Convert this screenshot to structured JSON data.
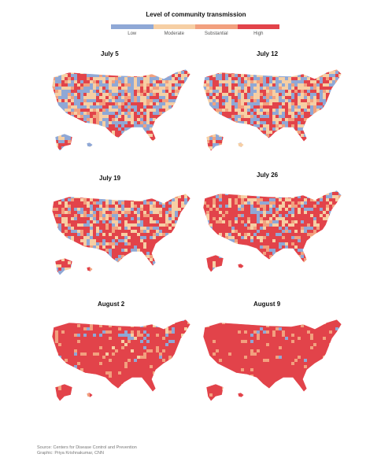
{
  "legend": {
    "title": "Level of community transmission",
    "levels": [
      {
        "label": "Low",
        "color": "#8fa8d6"
      },
      {
        "label": "Moderate",
        "color": "#f6cfa4"
      },
      {
        "label": "Substantial",
        "color": "#f2a07e"
      },
      {
        "label": "High",
        "color": "#e2434a"
      }
    ]
  },
  "maps": [
    {
      "title": "July 5",
      "high_share": 0.22,
      "low_share": 0.34
    },
    {
      "title": "July 12",
      "high_share": 0.3,
      "low_share": 0.26
    },
    {
      "title": "July 19",
      "high_share": 0.45,
      "low_share": 0.18
    },
    {
      "title": "July 26",
      "high_share": 0.62,
      "low_share": 0.1
    },
    {
      "title": "August 2",
      "high_share": 0.78,
      "low_share": 0.05
    },
    {
      "title": "August 9",
      "high_share": 0.86,
      "low_share": 0.03
    }
  ],
  "footer": {
    "source": "Source: Centers for Disease Control and Prevention",
    "graphic": "Graphic: Priya Krishnakumar, CNN"
  }
}
